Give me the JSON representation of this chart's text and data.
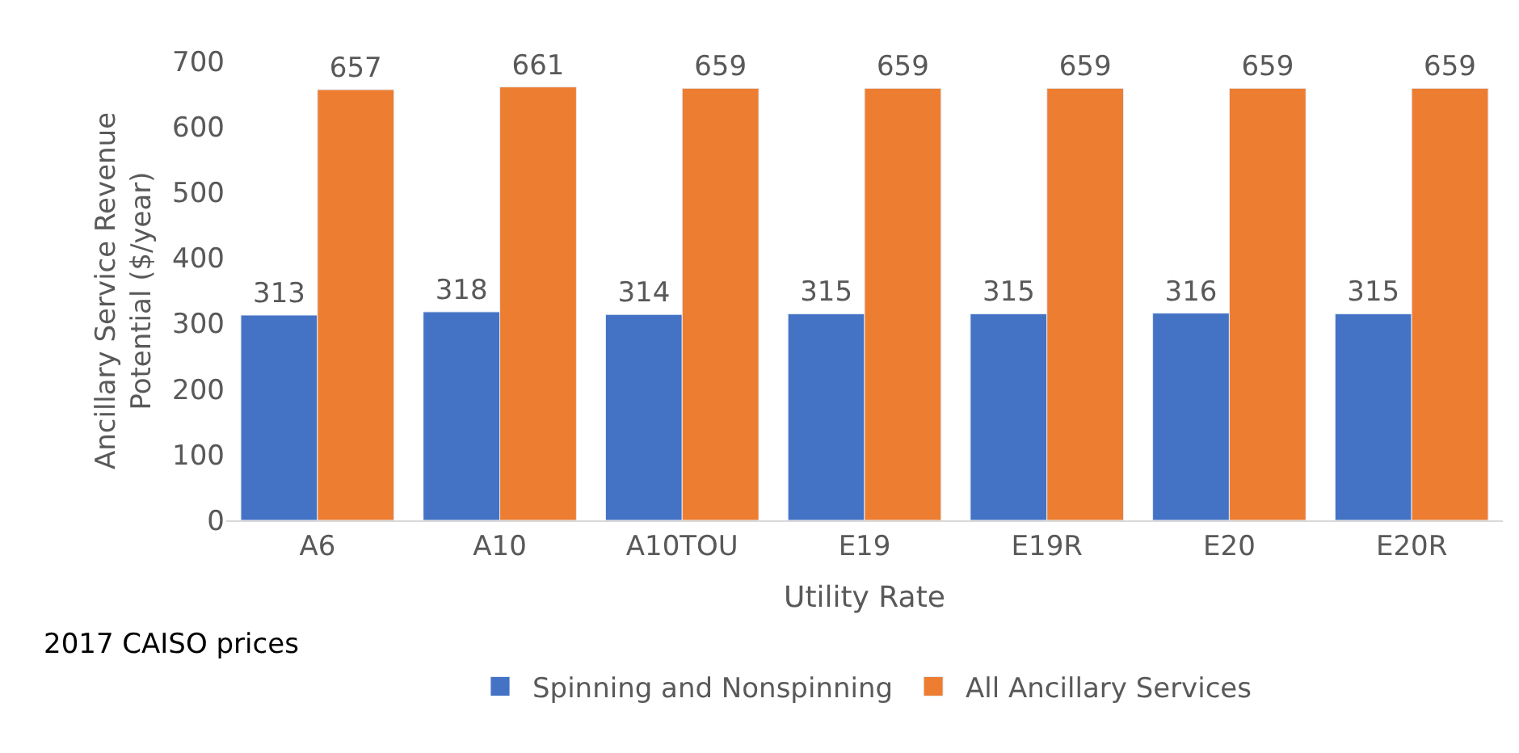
{
  "chart_data": {
    "type": "bar",
    "xlabel": "Utility Rate",
    "ylabel": "Ancillary Service Revenue Potential ($/year)",
    "categories": [
      "A6",
      "A10",
      "A10TOU",
      "E19",
      "E19R",
      "E20",
      "E20R"
    ],
    "series": [
      {
        "name": "Spinning and Nonspinning",
        "color": "#4472c4",
        "values": [
          313,
          318,
          314,
          315,
          315,
          316,
          315
        ]
      },
      {
        "name": "All Ancillary Services",
        "color": "#ed7d31",
        "values": [
          657,
          661,
          659,
          659,
          659,
          659,
          659
        ]
      }
    ],
    "ylim": [
      0,
      700
    ],
    "yticks": [
      0,
      100,
      200,
      300,
      400,
      500,
      600,
      700
    ],
    "data_labels": true,
    "grid": false,
    "legend": "bottom",
    "annotations": [
      "2017 CAISO prices"
    ]
  }
}
